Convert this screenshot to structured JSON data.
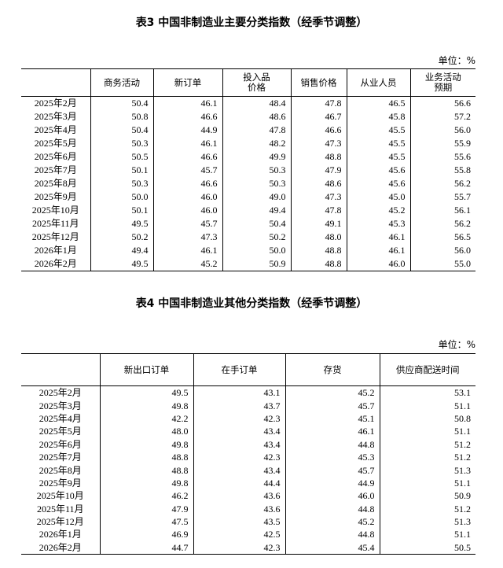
{
  "table3": {
    "title": "表3 中国非制造业主要分类指数（经季节调整）",
    "unit": "单位：%",
    "headers": [
      "",
      "商务活动",
      "新订单",
      "投入品\n价格",
      "销售价格",
      "从业人员",
      "业务活动\n预期"
    ],
    "rows": [
      [
        "2025年2月",
        "50.4",
        "46.1",
        "48.4",
        "47.8",
        "46.5",
        "56.6"
      ],
      [
        "2025年3月",
        "50.8",
        "46.6",
        "48.6",
        "46.7",
        "45.8",
        "57.2"
      ],
      [
        "2025年4月",
        "50.4",
        "44.9",
        "47.8",
        "46.6",
        "45.5",
        "56.0"
      ],
      [
        "2025年5月",
        "50.3",
        "46.1",
        "48.2",
        "47.3",
        "45.5",
        "55.9"
      ],
      [
        "2025年6月",
        "50.5",
        "46.6",
        "49.9",
        "48.8",
        "45.5",
        "55.6"
      ],
      [
        "2025年7月",
        "50.1",
        "45.7",
        "50.3",
        "47.9",
        "45.6",
        "55.8"
      ],
      [
        "2025年8月",
        "50.3",
        "46.6",
        "50.3",
        "48.6",
        "45.6",
        "56.2"
      ],
      [
        "2025年9月",
        "50.0",
        "46.0",
        "49.0",
        "47.3",
        "45.0",
        "55.7"
      ],
      [
        "2025年10月",
        "50.1",
        "46.0",
        "49.4",
        "47.8",
        "45.2",
        "56.1"
      ],
      [
        "2025年11月",
        "49.5",
        "45.7",
        "50.4",
        "49.1",
        "45.3",
        "56.2"
      ],
      [
        "2025年12月",
        "50.2",
        "47.3",
        "50.2",
        "48.0",
        "46.1",
        "56.5"
      ],
      [
        "2026年1月",
        "49.4",
        "46.1",
        "50.0",
        "48.8",
        "46.1",
        "56.0"
      ],
      [
        "2026年2月",
        "49.5",
        "45.2",
        "50.9",
        "48.8",
        "46.0",
        "55.0"
      ]
    ]
  },
  "table4": {
    "title": "表4 中国非制造业其他分类指数（经季节调整）",
    "unit": "单位：%",
    "headers": [
      "",
      "新出口订单",
      "在手订单",
      "存货",
      "供应商配送时间"
    ],
    "rows": [
      [
        "2025年2月",
        "49.5",
        "43.1",
        "45.2",
        "53.1"
      ],
      [
        "2025年3月",
        "49.8",
        "43.7",
        "45.7",
        "51.1"
      ],
      [
        "2025年4月",
        "42.2",
        "42.3",
        "45.1",
        "50.8"
      ],
      [
        "2025年5月",
        "48.0",
        "43.4",
        "46.1",
        "51.1"
      ],
      [
        "2025年6月",
        "49.8",
        "43.4",
        "44.8",
        "51.2"
      ],
      [
        "2025年7月",
        "48.8",
        "42.3",
        "45.3",
        "51.2"
      ],
      [
        "2025年8月",
        "48.8",
        "43.4",
        "45.7",
        "51.3"
      ],
      [
        "2025年9月",
        "49.8",
        "44.4",
        "44.9",
        "51.1"
      ],
      [
        "2025年10月",
        "46.2",
        "43.6",
        "46.0",
        "50.9"
      ],
      [
        "2025年11月",
        "47.9",
        "43.6",
        "44.8",
        "51.2"
      ],
      [
        "2025年12月",
        "47.5",
        "43.5",
        "45.2",
        "51.3"
      ],
      [
        "2026年1月",
        "46.9",
        "42.5",
        "44.8",
        "51.1"
      ],
      [
        "2026年2月",
        "44.7",
        "42.3",
        "45.4",
        "50.5"
      ]
    ]
  }
}
